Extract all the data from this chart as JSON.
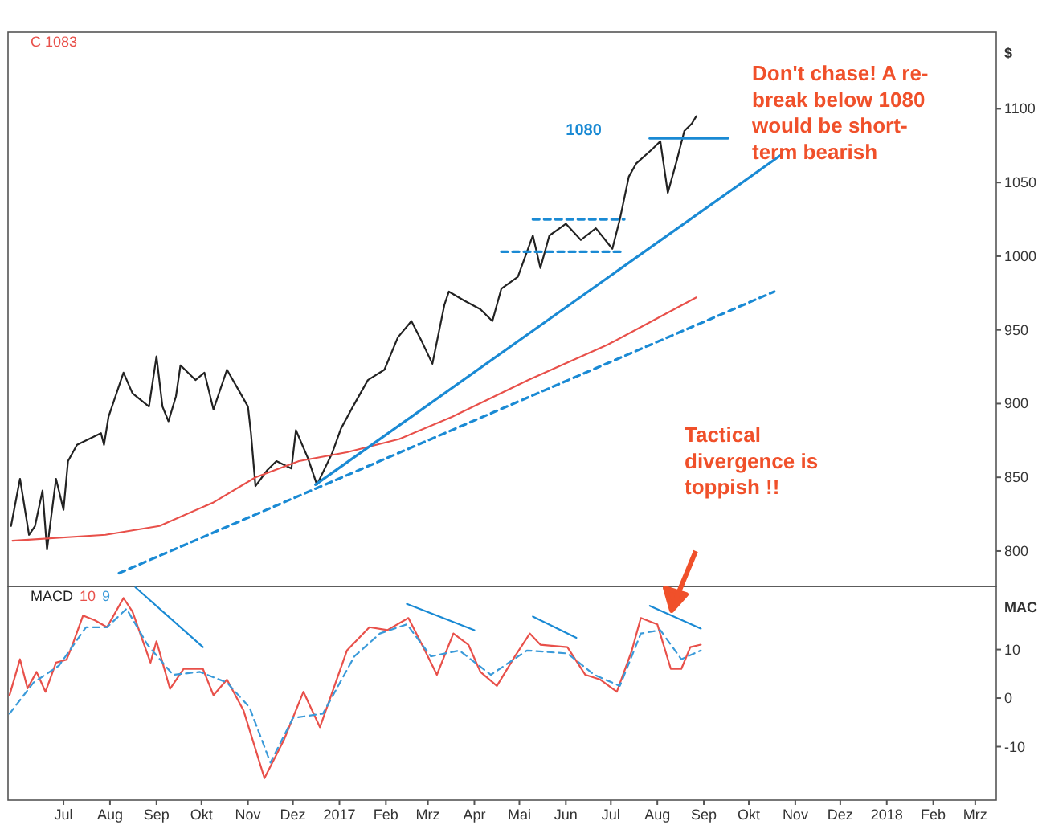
{
  "chart_data": [
    {
      "type": "line",
      "title": "C 1083",
      "ylabel": "$",
      "xlim": [
        "2016-05-25",
        "2018-03-15"
      ],
      "ylim": [
        776,
        1152
      ],
      "yticks": [
        800,
        850,
        900,
        950,
        1000,
        1050,
        1100
      ],
      "tick_labels": "y",
      "line_style": "solid",
      "series": [
        {
          "color": "#222222",
          "x": [
            "2016-05-27",
            "2016-06-02",
            "2016-06-08",
            "2016-06-12",
            "2016-06-17",
            "2016-06-20",
            "2016-06-26",
            "2016-07-01",
            "2016-07-04",
            "2016-07-10",
            "2016-07-26",
            "2016-07-28",
            "2016-07-31",
            "2016-08-10",
            "2016-08-16",
            "2016-08-27",
            "2016-09-01",
            "2016-09-05",
            "2016-09-09",
            "2016-09-14",
            "2016-09-17",
            "2016-09-27",
            "2016-10-03",
            "2016-10-09",
            "2016-10-18",
            "2016-10-27",
            "2016-11-01",
            "2016-11-03",
            "2016-11-06",
            "2016-11-14",
            "2016-11-20",
            "2016-11-30",
            "2016-12-03",
            "2016-12-11",
            "2016-12-17",
            "2016-12-27",
            "2017-01-02",
            "2017-01-10",
            "2017-01-20",
            "2017-01-31",
            "2017-02-09",
            "2017-02-18",
            "2017-02-25",
            "2017-03-04",
            "2017-03-12",
            "2017-03-15",
            "2017-03-25",
            "2017-04-05",
            "2017-04-13",
            "2017-04-19",
            "2017-04-30",
            "2017-05-10",
            "2017-05-15",
            "2017-05-21",
            "2017-06-01",
            "2017-06-11",
            "2017-06-21",
            "2017-07-02",
            "2017-07-07",
            "2017-07-13",
            "2017-07-18",
            "2017-07-29",
            "2017-08-03",
            "2017-08-06",
            "2017-08-08",
            "2017-08-14",
            "2017-08-19",
            "2017-08-24",
            "2017-08-27"
          ],
          "values": [
            817,
            849,
            811,
            817,
            841,
            801,
            849,
            828,
            861,
            872,
            880,
            872,
            891,
            921,
            907,
            898,
            932,
            898,
            888,
            905,
            926,
            916,
            921,
            896,
            923,
            907,
            898,
            880,
            844,
            855,
            861,
            856,
            882,
            863,
            845,
            866,
            883,
            898,
            916,
            923,
            945,
            956,
            942,
            927,
            967,
            976,
            970,
            964,
            956,
            978,
            986,
            1014,
            992,
            1014,
            1022,
            1011,
            1019,
            1005,
            1025,
            1054,
            1063,
            1073,
            1078,
            1057,
            1043,
            1065,
            1085,
            1090,
            1095
          ]
        },
        {
          "color": "#e8504a",
          "x": [
            "2016-05-28",
            "2016-07-29",
            "2016-09-03",
            "2016-10-09",
            "2016-11-06",
            "2016-12-05",
            "2017-01-06",
            "2017-02-10",
            "2017-03-17",
            "2017-05-07",
            "2017-06-29",
            "2017-08-27"
          ],
          "values": [
            807,
            811,
            817,
            833,
            850,
            861,
            867,
            876,
            891,
            916,
            940,
            972
          ]
        },
        {
          "color": "#1a8ad4",
          "x": [
            "2016-12-16",
            "2017-10-23"
          ],
          "values": [
            845,
            1069
          ]
        },
        {
          "color": "#1a8ad4",
          "line_style": "dashed",
          "x": [
            "2016-08-07",
            "2017-10-18"
          ],
          "values": [
            785,
            976
          ]
        },
        {
          "color": "#1a8ad4",
          "line_style": "dashed",
          "x": [
            "2017-04-19",
            "2017-07-08"
          ],
          "values": [
            1003,
            1003
          ]
        },
        {
          "color": "#1a8ad4",
          "line_style": "dashed",
          "x": [
            "2017-05-10",
            "2017-07-10"
          ],
          "values": [
            1025,
            1025
          ]
        },
        {
          "color": "#1a8ad4",
          "x": [
            "2017-07-27",
            "2017-09-17"
          ],
          "values": [
            1080,
            1080
          ]
        }
      ],
      "annotations": [
        "Don't chase! A re-break below 1080 would be short-term bearish",
        {
          "text": "1080",
          "x": "2017-07-27",
          "y": 1080
        },
        "Tactical divergence is toppish !!"
      ]
    },
    {
      "type": "line",
      "title": "MACD",
      "ylabel": "MAC",
      "legend": "top left",
      "xlim": [
        "2016-05-25",
        "2018-03-15"
      ],
      "ylim": [
        -21,
        23
      ],
      "yticks": [
        -10,
        0,
        10
      ],
      "line_style": "solid",
      "xticks": [
        {
          "value": "2016-07-01",
          "label": "Jul"
        },
        {
          "value": "2016-08-01",
          "label": "Aug"
        },
        {
          "value": "2016-09-01",
          "label": "Sep"
        },
        {
          "value": "2016-10-01",
          "label": "Okt"
        },
        {
          "value": "2016-11-01",
          "label": "Nov"
        },
        {
          "value": "2016-12-01",
          "label": "Dez"
        },
        {
          "value": "2017-01-01",
          "label": "2017"
        },
        {
          "value": "2017-02-01",
          "label": "Feb"
        },
        {
          "value": "2017-03-01",
          "label": "Mrz"
        },
        {
          "value": "2017-04-01",
          "label": "Apr"
        },
        {
          "value": "2017-05-01",
          "label": "Mai"
        },
        {
          "value": "2017-06-01",
          "label": "Jun"
        },
        {
          "value": "2017-07-01",
          "label": "Jul"
        },
        {
          "value": "2017-08-01",
          "label": "Aug"
        },
        {
          "value": "2017-09-01",
          "label": "Sep"
        },
        {
          "value": "2017-10-01",
          "label": "Okt"
        },
        {
          "value": "2017-11-01",
          "label": "Nov"
        },
        {
          "value": "2017-12-01",
          "label": "Dez"
        },
        {
          "value": "2018-01-01",
          "label": "2018"
        },
        {
          "value": "2018-02-01",
          "label": "Feb"
        },
        {
          "value": "2018-03-01",
          "label": "Mrz"
        }
      ],
      "series": [
        {
          "name": "10",
          "color": "#e8504a",
          "x": [
            "2016-05-26",
            "2016-06-02",
            "2016-06-07",
            "2016-06-13",
            "2016-06-19",
            "2016-06-26",
            "2016-07-03",
            "2016-07-07",
            "2016-07-14",
            "2016-07-22",
            "2016-07-30",
            "2016-08-10",
            "2016-08-16",
            "2016-08-28",
            "2016-09-01",
            "2016-09-10",
            "2016-09-19",
            "2016-10-02",
            "2016-10-09",
            "2016-10-18",
            "2016-10-29",
            "2016-11-12",
            "2016-11-25",
            "2016-12-08",
            "2016-12-19",
            "2017-01-06",
            "2017-01-21",
            "2017-02-02",
            "2017-02-16",
            "2017-02-27",
            "2017-03-07",
            "2017-03-18",
            "2017-03-28",
            "2017-04-05",
            "2017-04-16",
            "2017-04-28",
            "2017-05-08",
            "2017-05-15",
            "2017-06-02",
            "2017-06-14",
            "2017-06-24",
            "2017-07-05",
            "2017-07-15",
            "2017-07-21",
            "2017-08-01",
            "2017-08-10",
            "2017-08-17",
            "2017-08-23",
            "2017-08-30"
          ],
          "values": [
            0.6,
            8,
            2,
            5.4,
            1.3,
            7.3,
            7.9,
            11,
            17,
            16,
            14.6,
            20.6,
            17.8,
            7.3,
            11.7,
            1.9,
            6,
            6,
            0.6,
            3.8,
            -2.5,
            -16.5,
            -8.6,
            1.3,
            -6,
            9.8,
            14.6,
            14,
            16.5,
            9.8,
            4.8,
            13.3,
            11,
            5.4,
            2.5,
            8.6,
            13.3,
            11,
            10.5,
            4.8,
            3.8,
            1.3,
            9.8,
            16.5,
            15.2,
            6,
            6,
            10.5,
            11
          ]
        },
        {
          "name": "9",
          "color": "#3a9ad9",
          "line_style": "dashed",
          "x": [
            "2016-05-26",
            "2016-06-11",
            "2016-06-28",
            "2016-07-16",
            "2016-07-30",
            "2016-08-12",
            "2016-08-26",
            "2016-09-12",
            "2016-09-30",
            "2016-10-18",
            "2016-11-02",
            "2016-11-16",
            "2016-12-01",
            "2016-12-21",
            "2017-01-11",
            "2017-01-28",
            "2017-02-15",
            "2017-03-03",
            "2017-03-22",
            "2017-04-12",
            "2017-05-06",
            "2017-06-02",
            "2017-06-20",
            "2017-07-07",
            "2017-07-21",
            "2017-08-03",
            "2017-08-17",
            "2017-08-30"
          ],
          "values": [
            -3.2,
            3.2,
            6.7,
            14.6,
            14.6,
            18.4,
            11,
            4.8,
            5.4,
            3.2,
            -1.9,
            -13.3,
            -4.1,
            -3.2,
            8.6,
            13.3,
            15.2,
            8.6,
            9.8,
            4.8,
            9.8,
            9.2,
            4.8,
            2.5,
            13.3,
            14,
            8,
            9.8
          ]
        },
        {
          "color": "#1a8ad4",
          "x": [
            "2016-08-18",
            "2016-10-02"
          ],
          "values": [
            22.8,
            10.5
          ]
        },
        {
          "color": "#1a8ad4",
          "x": [
            "2017-02-15",
            "2017-04-01"
          ],
          "values": [
            19.4,
            14
          ]
        },
        {
          "color": "#1a8ad4",
          "x": [
            "2017-05-10",
            "2017-06-08"
          ],
          "values": [
            16.8,
            12.4
          ]
        },
        {
          "color": "#1a8ad4",
          "x": [
            "2017-07-27",
            "2017-08-30"
          ],
          "values": [
            19,
            14.3
          ]
        }
      ]
    }
  ]
}
